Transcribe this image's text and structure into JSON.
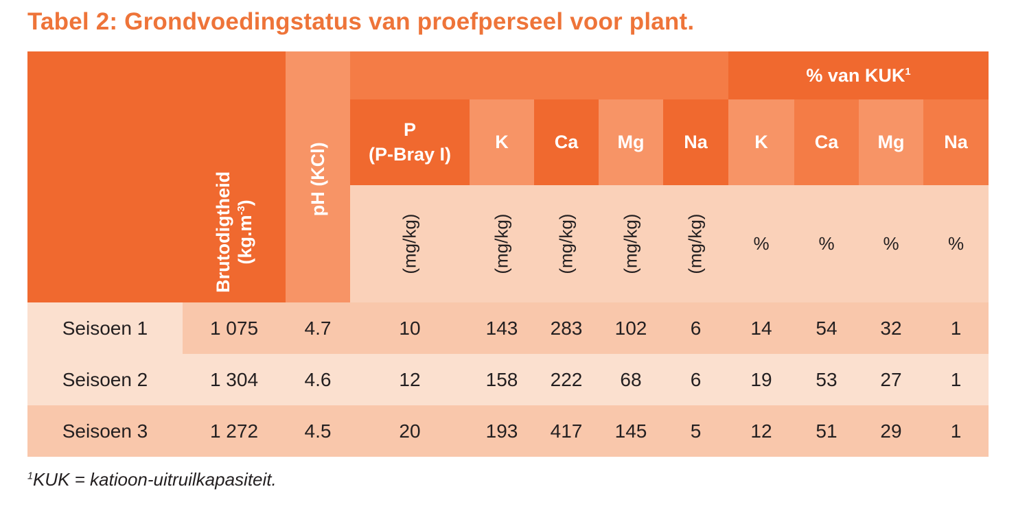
{
  "title": "Tabel 2: Grondvoedingstatus van proefperseel voor plant.",
  "headers": {
    "bulk_density_line1": "Brutodigtheid",
    "bulk_density_line2_pre": "(kg.m",
    "bulk_density_sup": "-3",
    "bulk_density_line2_post": ")",
    "ph": "pH (KCl)",
    "kuk_group": "% van KUK",
    "kuk_sup": "1",
    "p_line1": "P",
    "p_line2": "(P-Bray I)",
    "k": "K",
    "ca": "Ca",
    "mg": "Mg",
    "na": "Na",
    "k_pct": "K",
    "ca_pct": "Ca",
    "mg_pct": "Mg",
    "na_pct": "Na"
  },
  "units": {
    "p": "(mg/kg)",
    "k": "(mg/kg)",
    "ca": "(mg/kg)",
    "mg": "(mg/kg)",
    "na": "(mg/kg)",
    "k_pct": "%",
    "ca_pct": "%",
    "mg_pct": "%",
    "na_pct": "%"
  },
  "rows": [
    [
      "Seisoen 1",
      "1 075",
      "4.7",
      "10",
      "143",
      "283",
      "102",
      "6",
      "14",
      "54",
      "32",
      "1"
    ],
    [
      "Seisoen 2",
      "1 304",
      "4.6",
      "12",
      "158",
      "222",
      "68",
      "6",
      "19",
      "53",
      "27",
      "1"
    ],
    [
      "Seisoen 3",
      "1 272",
      "4.5",
      "20",
      "193",
      "417",
      "145",
      "5",
      "12",
      "51",
      "29",
      "1"
    ]
  ],
  "footnote": {
    "sup": "1",
    "text": "KUK = katioon-uitruilkapasiteit."
  },
  "colors": {
    "title": "#ee7439",
    "header_dark": "#f0692f",
    "header_mid": "#f47c46",
    "header_light": "#f79466",
    "unit_row": "#fad1b9",
    "row_light": "#fbe0cf",
    "row_mid": "#f9c7ab",
    "row_dark": "#f8bc9d"
  }
}
